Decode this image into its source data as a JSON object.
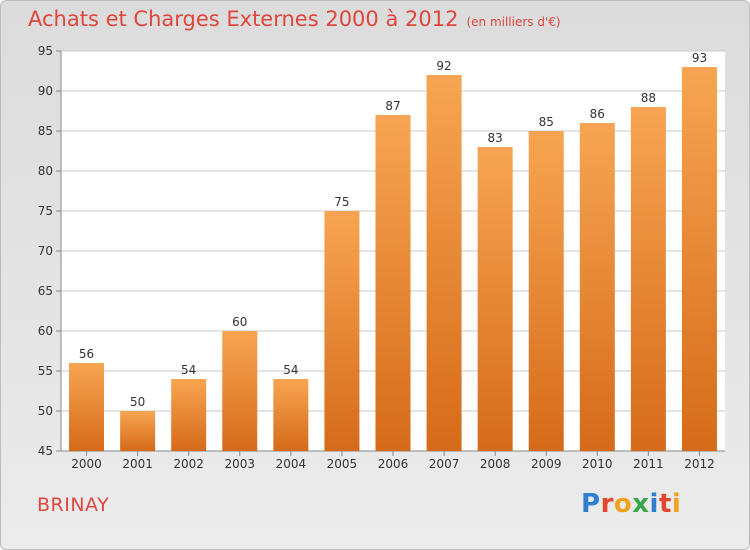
{
  "title": "Achats et Charges Externes 2000 à 2012",
  "subtitle": "(en milliers d'€)",
  "commune": "BRINAY",
  "brand": {
    "text": "Proxiti",
    "letter_colors": [
      "#2f7fd0",
      "#e2462f",
      "#f1a21e",
      "#3aa64a",
      "#2f7fd0",
      "#e2462f",
      "#f1a21e"
    ]
  },
  "colors": {
    "title": "#e0463c",
    "bar_top": "#f7a552",
    "bar_bottom": "#d56b1a",
    "grid": "#c9c9c9"
  },
  "chart_data": {
    "type": "bar",
    "title": "Achats et Charges Externes 2000 à 2012",
    "subtitle": "(en milliers d'€)",
    "categories": [
      "2000",
      "2001",
      "2002",
      "2003",
      "2004",
      "2005",
      "2006",
      "2007",
      "2008",
      "2009",
      "2010",
      "2011",
      "2012"
    ],
    "values": [
      56,
      50,
      54,
      60,
      54,
      75,
      87,
      92,
      83,
      85,
      86,
      88,
      93
    ],
    "ylim": [
      45,
      95
    ],
    "yticks": [
      45,
      50,
      55,
      60,
      65,
      70,
      75,
      80,
      85,
      90,
      95
    ],
    "grid": true,
    "data_labels": true
  }
}
